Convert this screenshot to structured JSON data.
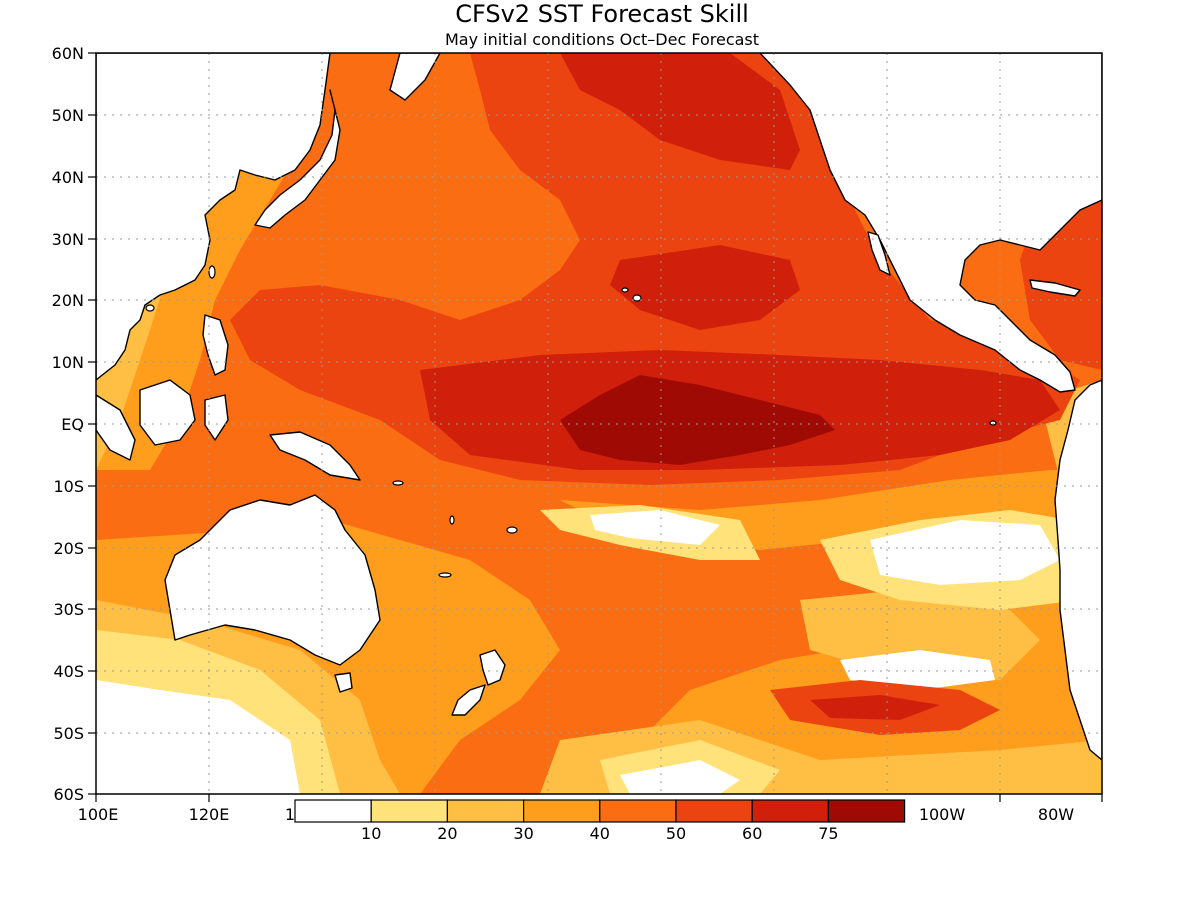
{
  "map": {
    "title": "CFSv2  SST Forecast Skill",
    "subtitle": "May initial conditions   Oct–Dec Forecast",
    "lat_labels": [
      "60N",
      "50N",
      "40N",
      "30N",
      "20N",
      "10N",
      "EQ",
      "10S",
      "20S",
      "30S",
      "40S",
      "50S",
      "60S"
    ],
    "lon_labels": [
      "100E",
      "120E",
      "1",
      "100W",
      "80W"
    ],
    "extent": {
      "lon_min": 100,
      "lon_max": 278,
      "lat_min": -60,
      "lat_max": 60
    },
    "field_name": "skill",
    "colorbar": {
      "tick_labels": [
        "10",
        "20",
        "30",
        "40",
        "50",
        "60",
        "75"
      ],
      "levels": [
        0,
        10,
        20,
        30,
        40,
        50,
        60,
        75,
        100
      ],
      "colors": [
        "#ffffff",
        "#ffe27a",
        "#ffbe44",
        "#ff9d1c",
        "#fb6d12",
        "#ec4410",
        "#d0200c",
        "#a00a05"
      ]
    },
    "colors": {
      "land": "#ffffff",
      "coast": "#000000",
      "grid": "#9a9a9a"
    }
  }
}
